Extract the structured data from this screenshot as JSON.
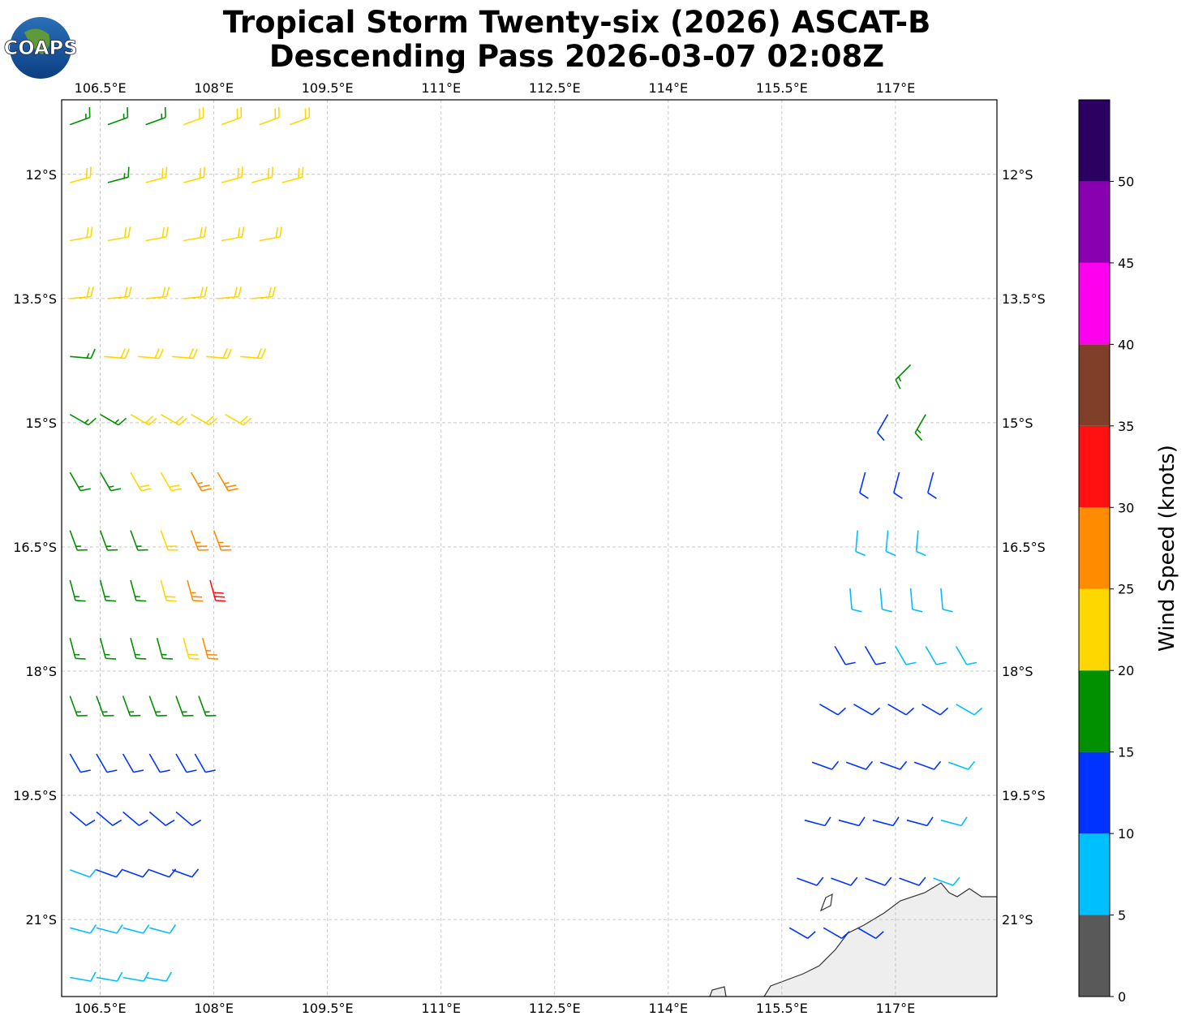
{
  "chart_data": {
    "type": "barbs",
    "title": [
      "Tropical Storm Twenty-six (2026) ASCAT-B",
      "Descending Pass 2026-03-07 02:08Z"
    ],
    "logo": "COAPS",
    "xlim": [
      105.99,
      118.34
    ],
    "ylim": [
      -21.93,
      -11.1
    ],
    "xticks": [
      {
        "value": 106.5,
        "label": "106.5°E"
      },
      {
        "value": 108,
        "label": "108°E"
      },
      {
        "value": 109.5,
        "label": "109.5°E"
      },
      {
        "value": 111,
        "label": "111°E"
      },
      {
        "value": 112.5,
        "label": "112.5°E"
      },
      {
        "value": 114,
        "label": "114°E"
      },
      {
        "value": 115.5,
        "label": "115.5°E"
      },
      {
        "value": 117,
        "label": "117°E"
      }
    ],
    "yticks": [
      {
        "value": -12,
        "label": "12°S"
      },
      {
        "value": -13.5,
        "label": "13.5°S"
      },
      {
        "value": -15,
        "label": "15°S"
      },
      {
        "value": -16.5,
        "label": "16.5°S"
      },
      {
        "value": -18,
        "label": "18°S"
      },
      {
        "value": -19.5,
        "label": "19.5°S"
      },
      {
        "value": -21,
        "label": "21°S"
      }
    ],
    "grid": true,
    "colorbar": {
      "label": "Wind Speed (knots)",
      "clim": [
        0,
        55
      ],
      "ticks": [
        0,
        5,
        10,
        15,
        20,
        25,
        30,
        35,
        40,
        45,
        50
      ],
      "colors": [
        "#595959",
        "#00bfff",
        "#0033ff",
        "#009000",
        "#ffd700",
        "#ff8c00",
        "#ff1111",
        "#803f28",
        "#ff00ee",
        "#8800b0",
        "#2a0060"
      ]
    },
    "barbs": [
      {
        "lat": -11.4,
        "dir": 70,
        "lon": [
          106.1,
          106.6,
          107.1,
          107.6,
          108.1,
          108.6,
          109.0
        ],
        "speed": [
          17,
          17,
          17,
          22,
          22,
          22,
          22
        ]
      },
      {
        "lat": -12.1,
        "dir": 75,
        "lon": [
          106.1,
          106.6,
          107.1,
          107.6,
          108.1,
          108.5,
          108.9
        ],
        "speed": [
          22,
          17,
          22,
          22,
          22,
          22,
          22
        ]
      },
      {
        "lat": -12.8,
        "dir": 80,
        "lon": [
          106.1,
          106.6,
          107.1,
          107.6,
          108.1,
          108.6
        ],
        "speed": [
          22,
          22,
          22,
          22,
          22,
          22
        ]
      },
      {
        "lat": -13.5,
        "dir": 85,
        "lon": [
          106.1,
          106.6,
          107.1,
          107.6,
          108.05,
          108.5
        ],
        "speed": [
          22,
          22,
          22,
          22,
          22,
          22
        ]
      },
      {
        "lat": -14.2,
        "dir": 95,
        "lon": [
          106.1,
          106.55,
          107.0,
          107.45,
          107.9,
          108.35
        ],
        "speed": [
          17,
          22,
          22,
          22,
          22,
          22
        ]
      },
      {
        "lat": -14.9,
        "dir": 120,
        "lon": [
          106.1,
          106.5,
          106.9,
          107.3,
          107.7,
          108.15
        ],
        "speed": [
          17,
          17,
          22,
          22,
          22,
          22
        ]
      },
      {
        "lat": -15.6,
        "dir": 150,
        "lon": [
          106.1,
          106.5,
          106.9,
          107.3,
          107.7,
          108.05
        ],
        "speed": [
          17,
          17,
          22,
          22,
          27,
          27
        ]
      },
      {
        "lat": -16.3,
        "dir": 160,
        "lon": [
          106.1,
          106.5,
          106.9,
          107.3,
          107.7,
          108.0
        ],
        "speed": [
          17,
          17,
          17,
          22,
          27,
          27
        ]
      },
      {
        "lat": -16.9,
        "dir": 165,
        "lon": [
          106.1,
          106.5,
          106.9,
          107.3,
          107.65,
          107.95
        ],
        "speed": [
          17,
          17,
          17,
          22,
          27,
          32
        ]
      },
      {
        "lat": -17.6,
        "dir": 165,
        "lon": [
          106.1,
          106.5,
          106.9,
          107.25,
          107.6,
          107.85
        ],
        "speed": [
          17,
          17,
          17,
          17,
          22,
          27
        ]
      },
      {
        "lat": -18.3,
        "dir": 160,
        "lon": [
          106.1,
          106.45,
          106.8,
          107.15,
          107.5,
          107.8
        ],
        "speed": [
          17,
          17,
          17,
          17,
          17,
          17
        ]
      },
      {
        "lat": -19.0,
        "dir": 150,
        "lon": [
          106.1,
          106.45,
          106.8,
          107.15,
          107.5,
          107.75
        ],
        "speed": [
          12,
          12,
          12,
          12,
          12,
          12
        ]
      },
      {
        "lat": -19.7,
        "dir": 130,
        "lon": [
          106.1,
          106.45,
          106.8,
          107.15,
          107.5
        ],
        "speed": [
          12,
          12,
          12,
          12,
          12
        ]
      },
      {
        "lat": -20.4,
        "dir": 110,
        "lon": [
          106.1,
          106.45,
          106.8,
          107.15,
          107.45
        ],
        "speed": [
          8,
          12,
          12,
          12,
          12
        ]
      },
      {
        "lat": -21.1,
        "dir": 105,
        "lon": [
          106.1,
          106.45,
          106.8,
          107.15
        ],
        "speed": [
          8,
          8,
          8,
          8
        ]
      },
      {
        "lat": -21.7,
        "dir": 100,
        "lon": [
          106.1,
          106.45,
          106.8,
          107.1
        ],
        "speed": [
          8,
          8,
          8,
          8
        ]
      },
      {
        "lat": -14.3,
        "dir": 225,
        "lon": [
          117.2
        ],
        "speed": [
          17
        ]
      },
      {
        "lat": -14.9,
        "dir": 210,
        "lon": [
          116.9,
          117.4
        ],
        "speed": [
          12,
          17
        ]
      },
      {
        "lat": -15.6,
        "dir": 195,
        "lon": [
          116.6,
          117.05,
          117.5
        ],
        "speed": [
          12,
          12,
          12
        ]
      },
      {
        "lat": -16.3,
        "dir": 185,
        "lon": [
          116.5,
          116.9,
          117.3
        ],
        "speed": [
          8,
          8,
          8
        ]
      },
      {
        "lat": -17.0,
        "dir": 175,
        "lon": [
          116.4,
          116.8,
          117.2,
          117.6
        ],
        "speed": [
          8,
          8,
          8,
          8
        ]
      },
      {
        "lat": -17.7,
        "dir": 150,
        "lon": [
          116.2,
          116.6,
          117.0,
          117.4,
          117.8
        ],
        "speed": [
          12,
          12,
          8,
          8,
          8
        ]
      },
      {
        "lat": -18.4,
        "dir": 120,
        "lon": [
          116.0,
          116.45,
          116.9,
          117.35,
          117.8
        ],
        "speed": [
          12,
          12,
          12,
          12,
          8
        ]
      },
      {
        "lat": -19.1,
        "dir": 110,
        "lon": [
          115.9,
          116.35,
          116.8,
          117.25,
          117.7
        ],
        "speed": [
          12,
          12,
          12,
          12,
          8
        ]
      },
      {
        "lat": -19.8,
        "dir": 105,
        "lon": [
          115.8,
          116.25,
          116.7,
          117.15,
          117.6
        ],
        "speed": [
          12,
          12,
          12,
          12,
          8
        ]
      },
      {
        "lat": -20.5,
        "dir": 110,
        "lon": [
          115.7,
          116.15,
          116.6,
          117.05,
          117.5
        ],
        "speed": [
          12,
          12,
          12,
          12,
          8
        ]
      },
      {
        "lat": -21.1,
        "dir": 120,
        "lon": [
          115.6,
          116.05,
          116.5
        ],
        "speed": [
          12,
          12,
          12
        ]
      }
    ]
  }
}
